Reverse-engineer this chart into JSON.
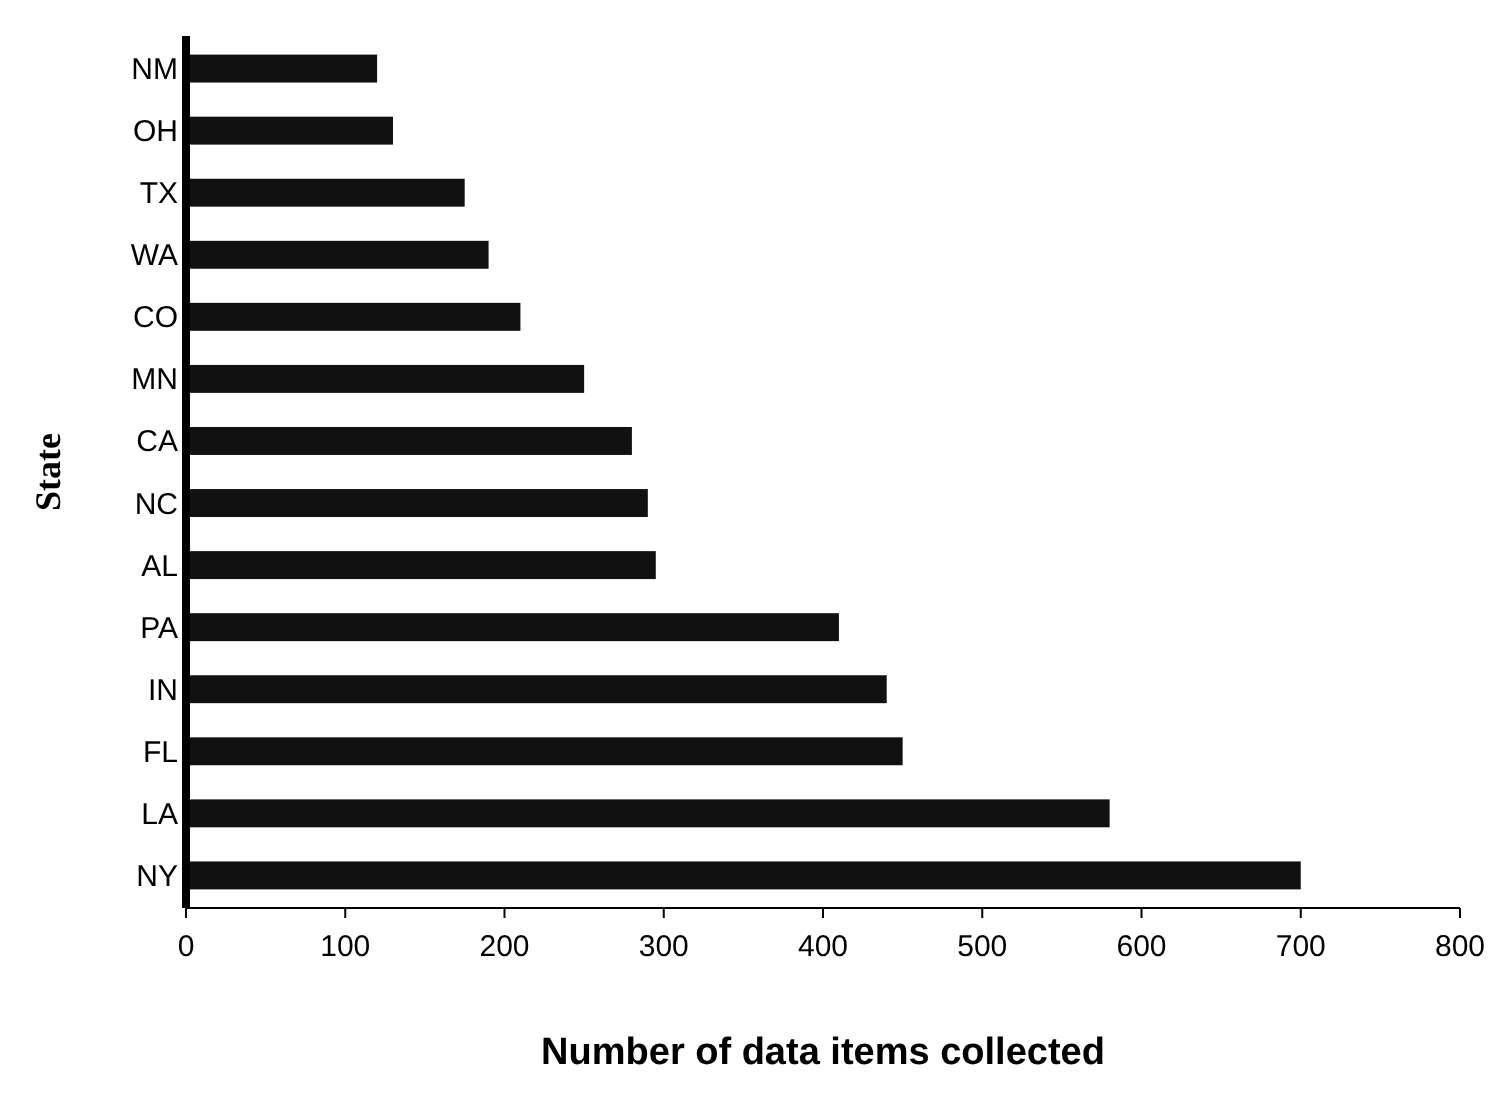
{
  "chart_data": {
    "type": "bar",
    "orientation": "horizontal",
    "xlabel": "Number of data items collected",
    "ylabel": "State",
    "categories": [
      "NM",
      "OH",
      "TX",
      "WA",
      "CO",
      "MN",
      "CA",
      "NC",
      "AL",
      "PA",
      "IN",
      "FL",
      "LA",
      "NY"
    ],
    "values": [
      120,
      130,
      175,
      190,
      210,
      250,
      280,
      290,
      295,
      410,
      440,
      450,
      580,
      700
    ],
    "color": "#111111",
    "xlim": [
      0,
      800
    ],
    "xticks": [
      0,
      100,
      200,
      300,
      400,
      500,
      600,
      700,
      800
    ],
    "grid": false
  }
}
